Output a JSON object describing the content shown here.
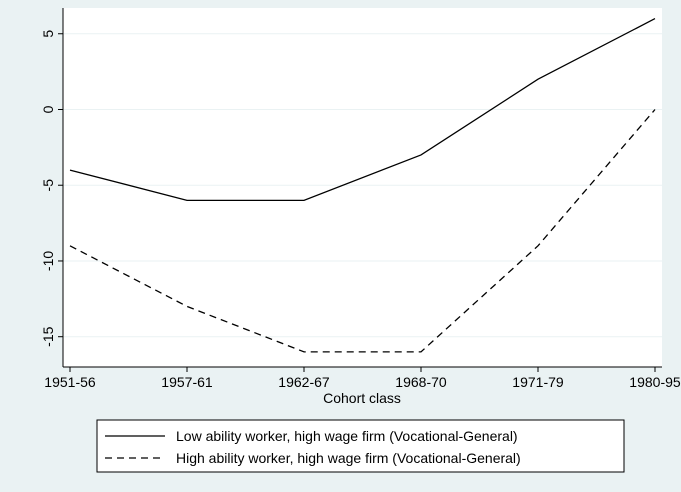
{
  "chart_data": {
    "type": "line",
    "xlabel": "Cohort class",
    "categories": [
      "1951-56",
      "1957-61",
      "1962-67",
      "1968-70",
      "1971-79",
      "1980-95"
    ],
    "series": [
      {
        "name": "Low ability worker, high wage firm (Vocational-General)",
        "color": "#000000",
        "dash": "solid",
        "values": [
          -4,
          -6,
          -6,
          -3,
          2,
          6
        ]
      },
      {
        "name": "High ability worker, high wage firm (Vocational-General)",
        "color": "#000000",
        "dash": "dashed",
        "values": [
          -9,
          -13,
          -16,
          -16,
          -9,
          0
        ]
      }
    ],
    "ylim": [
      -17,
      6.7
    ],
    "yticks": [
      -15,
      -10,
      -5,
      0,
      5
    ],
    "grid": true,
    "legend": "bottom"
  }
}
